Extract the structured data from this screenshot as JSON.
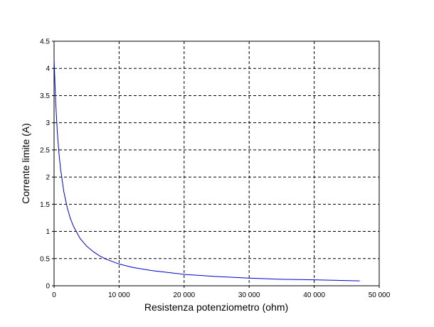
{
  "chart_data": {
    "type": "line",
    "xlabel": "Resistenza potenziometro (ohm)",
    "ylabel": "Corrente limite (A)",
    "x": [
      0,
      250,
      500,
      750,
      1000,
      1500,
      2000,
      2500,
      3000,
      4000,
      5000,
      6000,
      7000,
      8000,
      10000,
      12000,
      15000,
      20000,
      25000,
      30000,
      35000,
      40000,
      47000
    ],
    "series": [
      {
        "color": "#0000cc",
        "values": [
          4.17,
          3.37,
          2.83,
          2.44,
          2.15,
          1.73,
          1.45,
          1.24,
          1.09,
          0.87,
          0.73,
          0.63,
          0.55,
          0.49,
          0.4,
          0.34,
          0.28,
          0.21,
          0.17,
          0.14,
          0.12,
          0.11,
          0.09
        ]
      }
    ],
    "xlim": [
      0,
      50000
    ],
    "ylim": [
      0,
      4.5
    ],
    "xticks": [
      0,
      {
        "value": 10000,
        "label": "10 000"
      },
      {
        "value": 20000,
        "label": "20 000"
      },
      {
        "value": 30000,
        "label": "30 000"
      },
      {
        "value": 40000,
        "label": "40 000"
      },
      {
        "value": 50000,
        "label": "50 000"
      }
    ],
    "yticks": [
      0,
      0.5,
      1,
      1.5,
      2,
      2.5,
      3,
      3.5,
      4,
      4.5
    ],
    "grid": true
  }
}
